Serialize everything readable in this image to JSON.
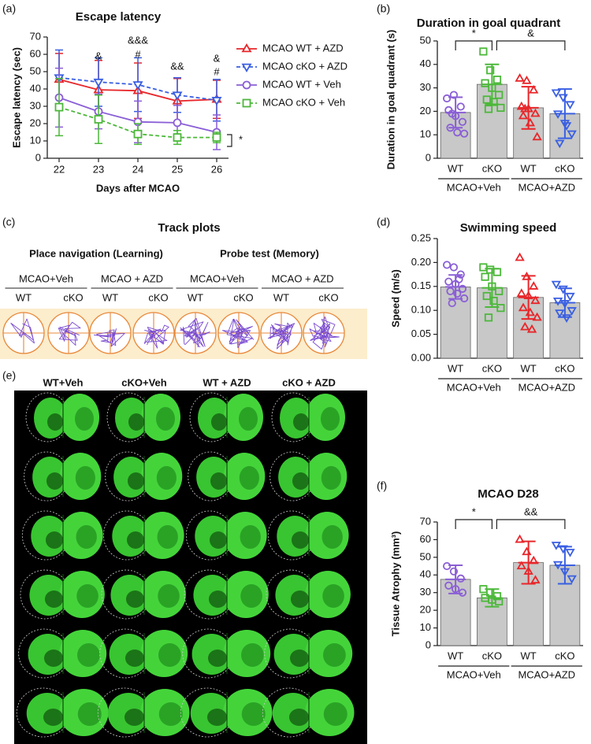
{
  "chart_data": [
    {
      "type": "line",
      "panel": "(a)",
      "title": "Escape latency",
      "xlabel": "Days after MCAO",
      "ylabel": "Escape latency (sec)",
      "x": [
        22,
        23,
        24,
        25,
        26
      ],
      "xlim": [
        21.7,
        26.3
      ],
      "xticks": [
        22,
        23,
        24,
        25,
        26
      ],
      "ylim": [
        0,
        70
      ],
      "yticks": [
        0,
        10,
        20,
        30,
        40,
        50,
        60,
        70
      ],
      "legend": "right",
      "series": [
        {
          "name": "MCAO WT + AZD",
          "color": "#e8262a",
          "marker": "triangle",
          "dash": "solid",
          "values": [
            45.5,
            39.5,
            39,
            33,
            34
          ],
          "errors": [
            15,
            17,
            16,
            13,
            11
          ]
        },
        {
          "name": "MCAO cKO + AZD",
          "color": "#3a5fe2",
          "marker": "triangle-down",
          "dash": "dashed",
          "values": [
            46.5,
            44,
            42.5,
            36.5,
            33.5
          ],
          "errors": [
            16,
            14,
            15.5,
            10,
            12
          ]
        },
        {
          "name": "MCAO WT + Veh",
          "color": "#8a5ed6",
          "marker": "circle",
          "dash": "solid",
          "values": [
            35,
            27,
            21,
            20.5,
            15
          ],
          "errors": [
            17,
            10,
            12,
            10,
            10
          ]
        },
        {
          "name": "MCAO cKO + Veh",
          "color": "#4cb83a",
          "marker": "square",
          "dash": "dashed",
          "values": [
            29.5,
            22.5,
            14,
            12,
            12
          ],
          "errors": [
            16.5,
            14,
            6,
            4,
            3
          ]
        }
      ],
      "annotations": [
        "&",
        "&&&",
        "#",
        "&&",
        "&",
        "#",
        "*"
      ]
    },
    {
      "type": "bar",
      "panel": "(b)",
      "title": "Duration in goal quadrant",
      "ylabel": "Duration in goal quadrant (s)",
      "categories": [
        "WT",
        "cKO",
        "WT",
        "cKO"
      ],
      "groups": [
        "MCAO+Veh",
        "MCAO+AZD"
      ],
      "values": [
        19.5,
        31.5,
        21.5,
        19
      ],
      "errors": [
        6.5,
        8.5,
        9,
        10.5
      ],
      "bar_color": "#c7c8c7",
      "colors": [
        "#8a5ed6",
        "#4cb83a",
        "#e8262a",
        "#3a5fe2"
      ],
      "markers": [
        "circle",
        "square",
        "triangle",
        "triangle-down"
      ],
      "points": [
        [
          25.5,
          27,
          22,
          20.5,
          18,
          15.5,
          13,
          11,
          10.5,
          19
        ],
        [
          45.5,
          37.5,
          33.5,
          32,
          30,
          27,
          25,
          24,
          21.5,
          21
        ],
        [
          34,
          33,
          29,
          22,
          21,
          19,
          18,
          15,
          9,
          21
        ],
        [
          28,
          26,
          23,
          19,
          15,
          10.5,
          6.5,
          14
        ]
      ],
      "ylim": [
        0,
        50
      ],
      "yticks": [
        0,
        10,
        20,
        30,
        40,
        50
      ],
      "significance": [
        "*",
        "&"
      ]
    },
    {
      "type": "bar",
      "panel": "(d)",
      "title": "Swimming speed",
      "ylabel": "Speed (m/s)",
      "categories": [
        "WT",
        "cKO",
        "WT",
        "cKO"
      ],
      "groups": [
        "MCAO+Veh",
        "MCAO+AZD"
      ],
      "values": [
        0.149,
        0.147,
        0.127,
        0.116
      ],
      "errors": [
        0.025,
        0.04,
        0.045,
        0.03
      ],
      "bar_color": "#c7c8c7",
      "colors": [
        "#8a5ed6",
        "#4cb83a",
        "#e8262a",
        "#3a5fe2"
      ],
      "markers": [
        "circle",
        "square",
        "triangle",
        "triangle-down"
      ],
      "points": [
        [
          0.195,
          0.19,
          0.175,
          0.16,
          0.155,
          0.145,
          0.14,
          0.135,
          0.125,
          0.115,
          0.165
        ],
        [
          0.19,
          0.185,
          0.18,
          0.17,
          0.15,
          0.14,
          0.13,
          0.12,
          0.105,
          0.085
        ],
        [
          0.21,
          0.17,
          0.15,
          0.135,
          0.13,
          0.12,
          0.105,
          0.095,
          0.085,
          0.065,
          0.06
        ],
        [
          0.155,
          0.145,
          0.13,
          0.12,
          0.115,
          0.1,
          0.095,
          0.085
        ]
      ],
      "ylim": [
        0,
        0.25
      ],
      "yticks": [
        {
          "value": 0,
          "label": "0.00"
        },
        0.05,
        {
          "value": 0.1,
          "label": "0.10"
        },
        0.15,
        {
          "value": 0.2,
          "label": "0.20"
        },
        0.25
      ],
      "significance": []
    },
    {
      "type": "bar",
      "panel": "(f)",
      "title": "MCAO D28",
      "ylabel": "Tissue Atrophy (mm³)",
      "categories": [
        "WT",
        "cKO",
        "WT",
        "cKO"
      ],
      "groups": [
        "MCAO+Veh",
        "MCAO+AZD"
      ],
      "values": [
        37.5,
        27,
        47,
        45.5
      ],
      "errors": [
        8,
        5,
        12,
        10.5
      ],
      "bar_color": "#c7c8c7",
      "colors": [
        "#8a5ed6",
        "#4cb83a",
        "#e8262a",
        "#3a5fe2"
      ],
      "markers": [
        "circle",
        "square",
        "triangle",
        "triangle-down"
      ],
      "points": [
        [
          45,
          42,
          38,
          34,
          32,
          30
        ],
        [
          32,
          30,
          28,
          27,
          26,
          25
        ],
        [
          60,
          53,
          48,
          45,
          42,
          37
        ],
        [
          57,
          55,
          53,
          46,
          42,
          38
        ]
      ],
      "ylim": [
        0,
        70
      ],
      "yticks": [
        0,
        10,
        20,
        30,
        40,
        50,
        60,
        70
      ],
      "significance": [
        "*",
        "&&"
      ]
    }
  ],
  "track_plots": {
    "panel": "(c)",
    "title": "Track plots",
    "sections": [
      {
        "label": "Place navigation (Learning)",
        "groups": [
          {
            "label": "MCAO+Veh",
            "columns": [
              "WT",
              "cKO"
            ]
          },
          {
            "label": "MCAO + AZD",
            "columns": [
              "WT",
              "cKO"
            ]
          }
        ]
      },
      {
        "label": "Probe test (Memory)",
        "groups": [
          {
            "label": "MCAO+Veh",
            "columns": [
              "WT",
              "cKO"
            ]
          },
          {
            "label": "MCAO + AZD",
            "columns": [
              "WT",
              "cKO"
            ]
          }
        ]
      }
    ]
  },
  "brain_sections": {
    "panel": "(e)",
    "columns": [
      "WT+Veh",
      "cKO+Veh",
      "WT + AZD",
      "cKO + AZD"
    ]
  }
}
